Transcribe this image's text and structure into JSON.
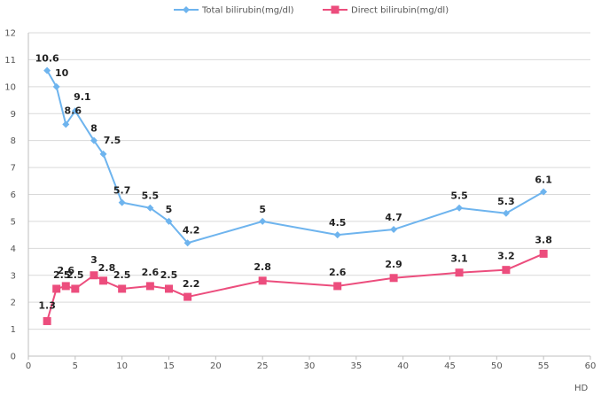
{
  "chart_data": {
    "type": "line",
    "xlabel": "HD",
    "ylabel": "",
    "xlim": [
      0,
      60
    ],
    "ylim": [
      0,
      12
    ],
    "x_ticks": [
      0,
      5,
      10,
      15,
      20,
      25,
      30,
      35,
      40,
      45,
      50,
      55,
      60
    ],
    "y_ticks": [
      0,
      1,
      2,
      3,
      4,
      5,
      6,
      7,
      8,
      9,
      10,
      11,
      12
    ],
    "grid": "horizontal",
    "legend_position": "top",
    "series": [
      {
        "name": "Total bilirubin(mg/dl)",
        "color": "#6EB4EE",
        "marker": "diamond",
        "x": [
          2,
          3,
          4,
          5,
          7,
          8,
          10,
          13,
          15,
          17,
          25,
          33,
          39,
          46,
          51,
          55
        ],
        "values": [
          10.6,
          10,
          8.6,
          9.1,
          8,
          7.5,
          5.7,
          5.5,
          5,
          4.2,
          5,
          4.5,
          4.7,
          5.5,
          5.3,
          6.1
        ],
        "labels": [
          "10.6",
          "10",
          "8.6",
          "9.1",
          "8",
          "7.5",
          "5.7",
          "5.5",
          "5",
          "4.2",
          "5",
          "4.5",
          "4.7",
          "5.5",
          "5.3",
          "6.1"
        ]
      },
      {
        "name": "Direct bilirubin(mg/dl)",
        "color": "#EC4D7D",
        "marker": "square",
        "x": [
          2,
          3,
          4,
          5,
          7,
          8,
          10,
          13,
          15,
          17,
          25,
          33,
          39,
          46,
          51,
          55
        ],
        "values": [
          1.3,
          2.5,
          2.6,
          2.5,
          3,
          2.8,
          2.5,
          2.6,
          2.5,
          2.2,
          2.8,
          2.6,
          2.9,
          3.1,
          3.2,
          3.8
        ],
        "labels": [
          "1.3",
          "2.5",
          "2.6",
          "2.5",
          "3",
          "2.8",
          "2.5",
          "2.6",
          "2.5",
          "2.2",
          "2.8",
          "2.6",
          "2.9",
          "3.1",
          "3.2",
          "3.8"
        ]
      }
    ]
  }
}
